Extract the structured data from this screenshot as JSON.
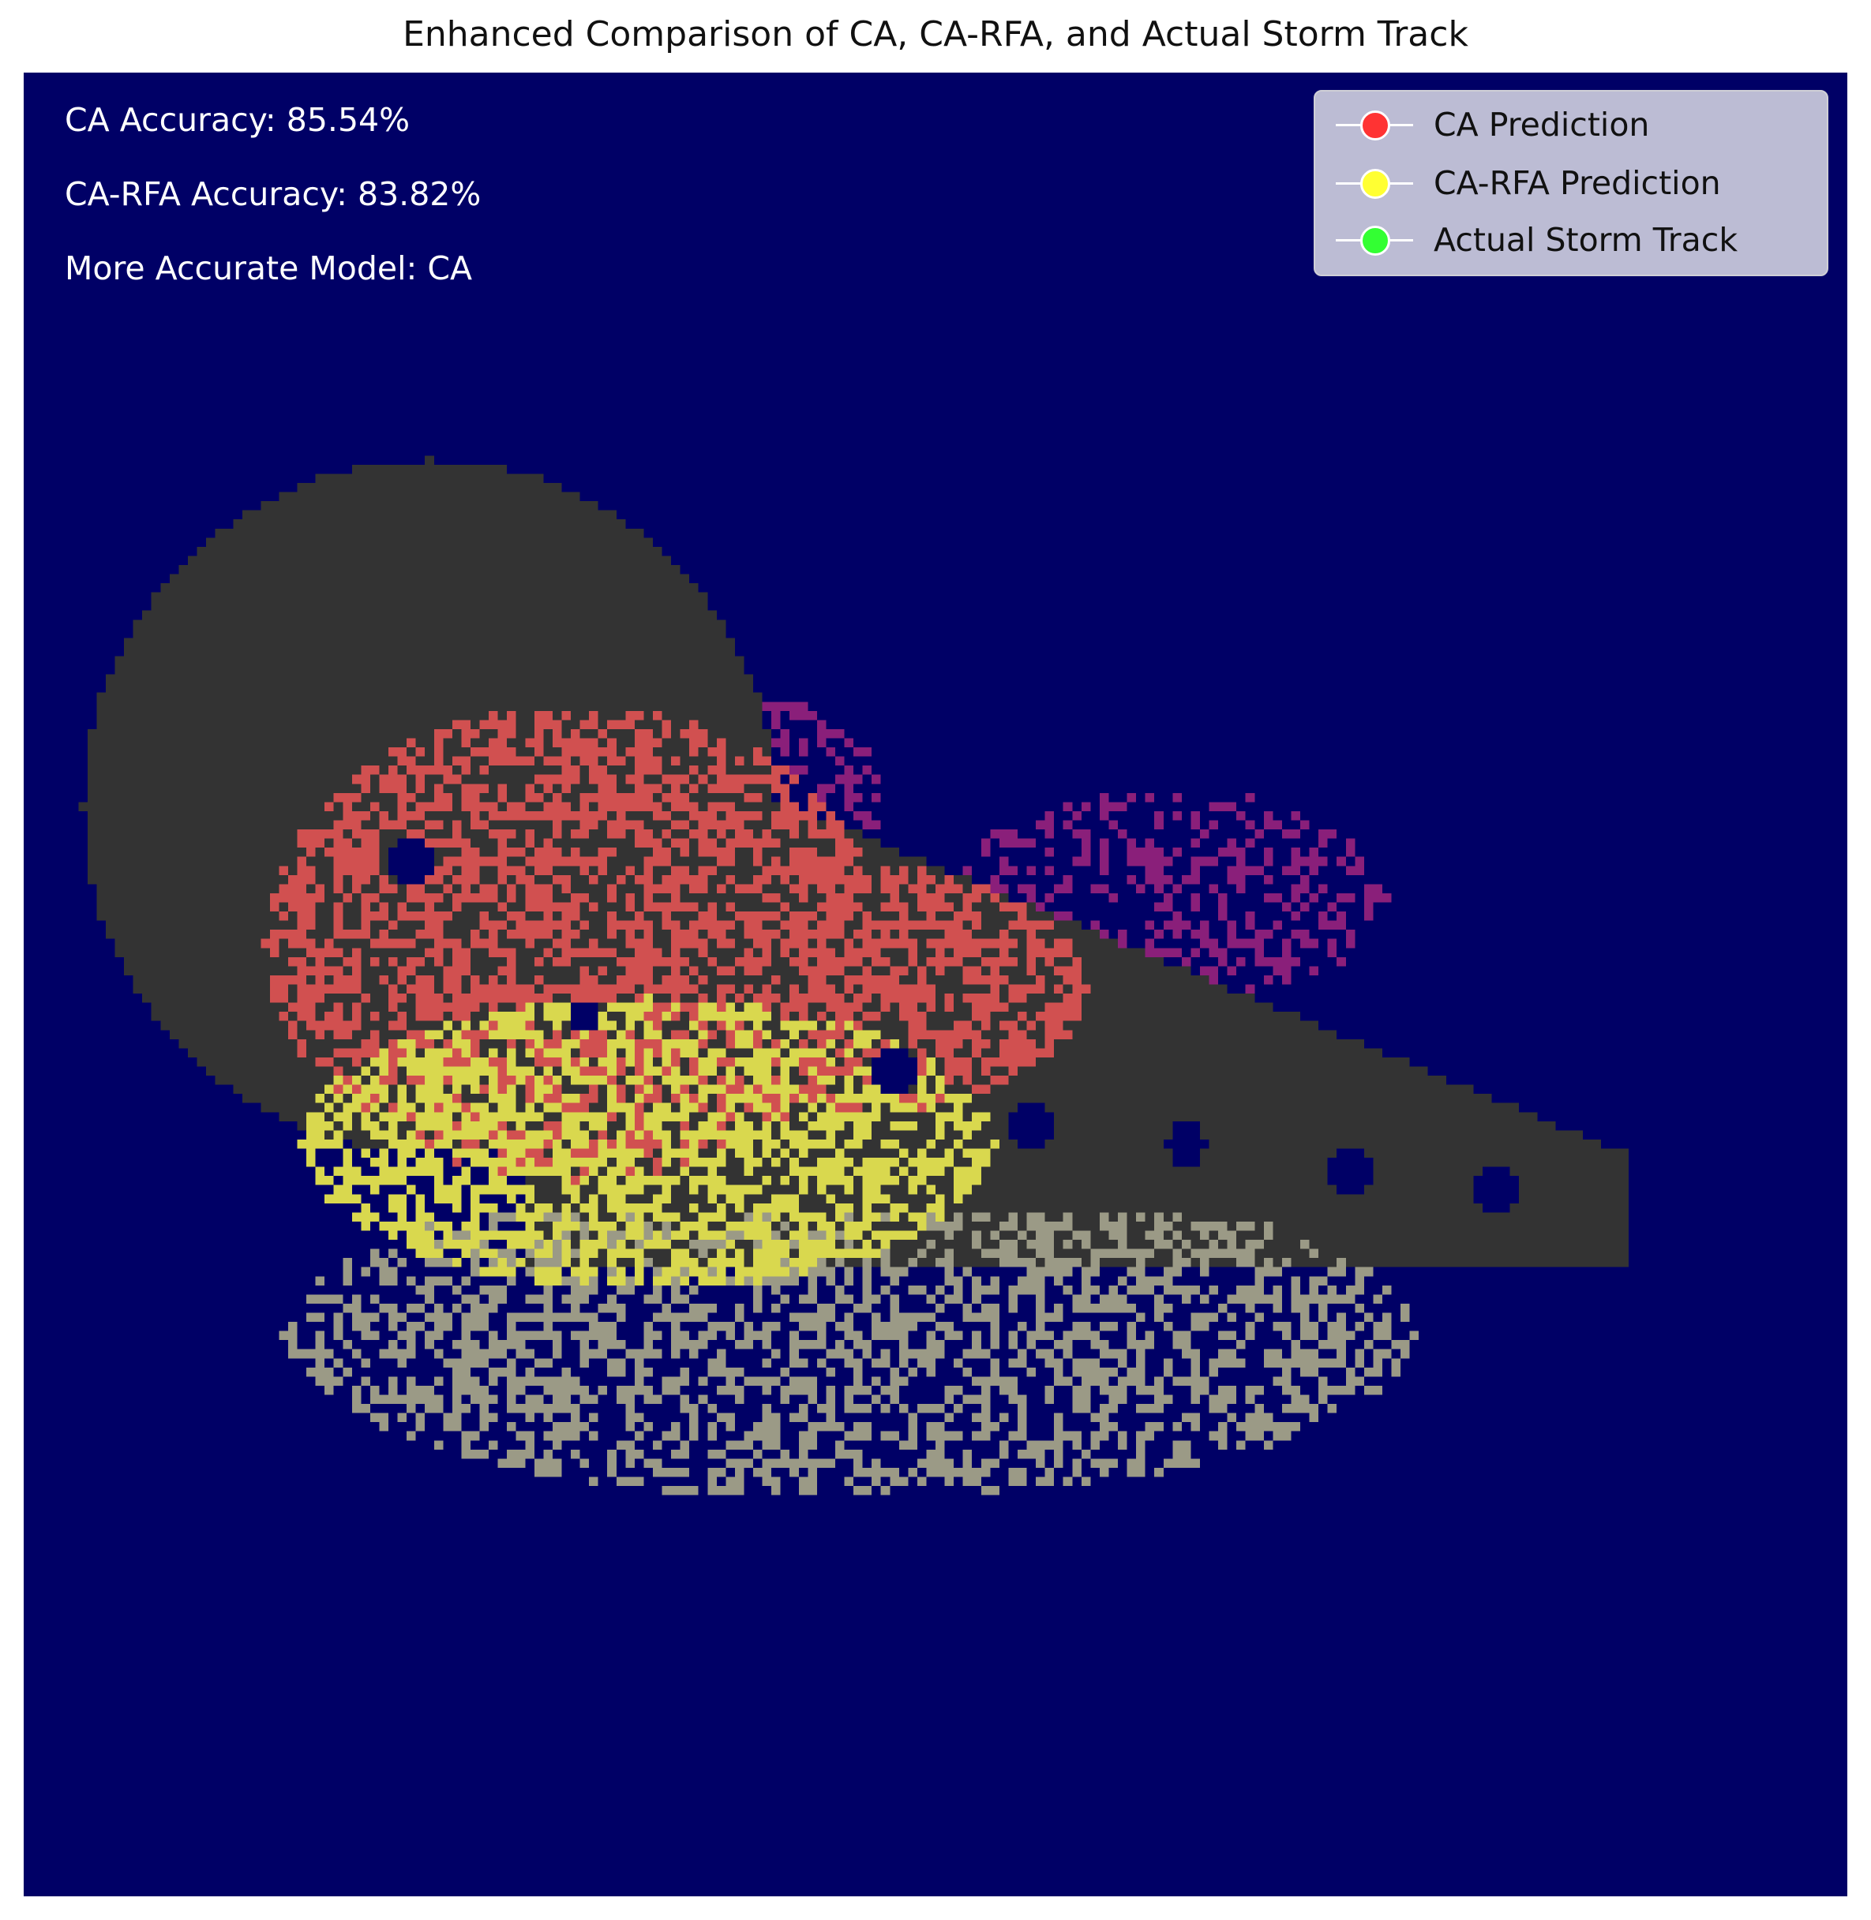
{
  "chart_data": {
    "type": "heatmap",
    "title": "Enhanced Comparison of CA, CA-RFA, and Actual Storm Track",
    "xlabel": "",
    "ylabel": "",
    "axes_visible": false,
    "background_color": "#000066",
    "annotations": [
      "CA Accuracy: 85.54%",
      "CA-RFA Accuracy: 83.82%",
      "More Accurate Model: CA"
    ],
    "ca_accuracy_percent": 85.54,
    "ca_rfa_accuracy_percent": 83.82,
    "more_accurate_model": "CA",
    "legend": {
      "placement": "top-right",
      "entries": [
        {
          "label": "CA Prediction",
          "color": "#ff3333"
        },
        {
          "label": "CA-RFA Prediction",
          "color": "#ffff33"
        },
        {
          "label": "Actual Storm Track",
          "color": "#33ff33"
        }
      ]
    },
    "layer_colors": {
      "overlap": "#333333",
      "ca": "#d15050",
      "ca_rfa": "#d9d84e",
      "actual": "#9b9a86",
      "ca_actual_mix": "#8a1f7a"
    }
  }
}
